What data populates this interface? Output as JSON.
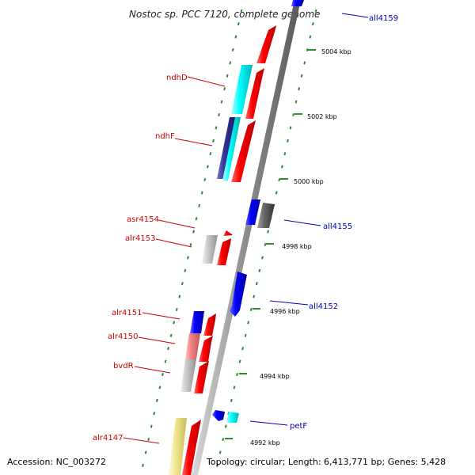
{
  "title": "Nostoc sp. PCC 7120, complete genome",
  "footer": {
    "accession": "Accession: NC_003272",
    "summary": "Topology: circular; Length: 6,413,771 bp; Genes: 5,428"
  },
  "colors": {
    "backbone": "#8c8c8c",
    "tick_green": "#2e8b2e",
    "label_red": "#cc0000",
    "label_blue": "#0000bb",
    "forward_gene": "#ff0000",
    "reverse_gene": "#0000ff",
    "cyan_gene": "#00ffff",
    "navy_gene": "#333399",
    "grey_gene": "#c8c8c8",
    "dark_grey_gene": "#666666",
    "pink_gene": "#f08080",
    "khaki_gene": "#f0e68c"
  },
  "scale_labels": [
    "5004 kbp",
    "5002 kbp",
    "5000 kbp",
    "4998 kbp",
    "4996 kbp",
    "4994 kbp",
    "4992 kbp"
  ],
  "gene_labels_left": [
    "ndhD",
    "ndhF",
    "asr4154",
    "alr4153",
    "alr4151",
    "alr4150",
    "bvdR",
    "alr4147"
  ],
  "gene_labels_right": [
    "all4159",
    "all4155",
    "all4152",
    "petF"
  ],
  "features": [
    {
      "name": "all4159",
      "strand": "reverse",
      "color": "reverse_gene",
      "labelled": true
    },
    {
      "name": "forward-gene-top",
      "strand": "forward",
      "color": "forward_gene",
      "labelled": false
    },
    {
      "name": "ndhD",
      "strand": "forward",
      "color": "cyan_gene",
      "labelled": true
    },
    {
      "name": "forward-gene-ndhD-pair",
      "strand": "forward",
      "color": "forward_gene",
      "labelled": false
    },
    {
      "name": "ndhF",
      "strand": "forward",
      "color": "navy_gene",
      "labelled": true
    },
    {
      "name": "cyan-gene-ndhF-pair",
      "strand": "forward",
      "color": "cyan_gene",
      "labelled": false
    },
    {
      "name": "forward-gene-ndhF-pair",
      "strand": "forward",
      "color": "forward_gene",
      "labelled": false
    },
    {
      "name": "all4155",
      "strand": "reverse",
      "color": "reverse_gene",
      "labelled": true
    },
    {
      "name": "dark-grey-gene",
      "strand": "reverse",
      "color": "dark_grey_gene",
      "labelled": false
    },
    {
      "name": "asr4154",
      "strand": "forward",
      "color": "forward_gene",
      "labelled": true
    },
    {
      "name": "alr4153",
      "strand": "forward",
      "color": "forward_gene",
      "labelled": true
    },
    {
      "name": "grey-gene-alr4153-pair",
      "strand": "forward",
      "color": "grey_gene",
      "labelled": false
    },
    {
      "name": "all4152",
      "strand": "reverse",
      "color": "reverse_gene",
      "labelled": true
    },
    {
      "name": "alr4151",
      "strand": "forward",
      "color": "forward_gene",
      "labelled": true
    },
    {
      "name": "blue-gene-alr4151-pair",
      "strand": "forward",
      "color": "reverse_gene",
      "labelled": false
    },
    {
      "name": "alr4150",
      "strand": "forward",
      "color": "forward_gene",
      "labelled": true
    },
    {
      "name": "pink-gene-alr4150-pair",
      "strand": "forward",
      "color": "pink_gene",
      "labelled": false
    },
    {
      "name": "bvdR",
      "strand": "forward",
      "color": "forward_gene",
      "labelled": true
    },
    {
      "name": "grey-gene-bvdR-pair",
      "strand": "forward",
      "color": "grey_gene",
      "labelled": false
    },
    {
      "name": "petF",
      "strand": "reverse",
      "color": "cyan_gene",
      "labelled": true
    },
    {
      "name": "blue-gene-petF-pair",
      "strand": "reverse",
      "color": "reverse_gene",
      "labelled": false
    },
    {
      "name": "alr4147",
      "strand": "forward",
      "color": "forward_gene",
      "labelled": true
    },
    {
      "name": "khaki-gene-alr4147-pair",
      "strand": "forward",
      "color": "khaki_gene",
      "labelled": false
    }
  ]
}
